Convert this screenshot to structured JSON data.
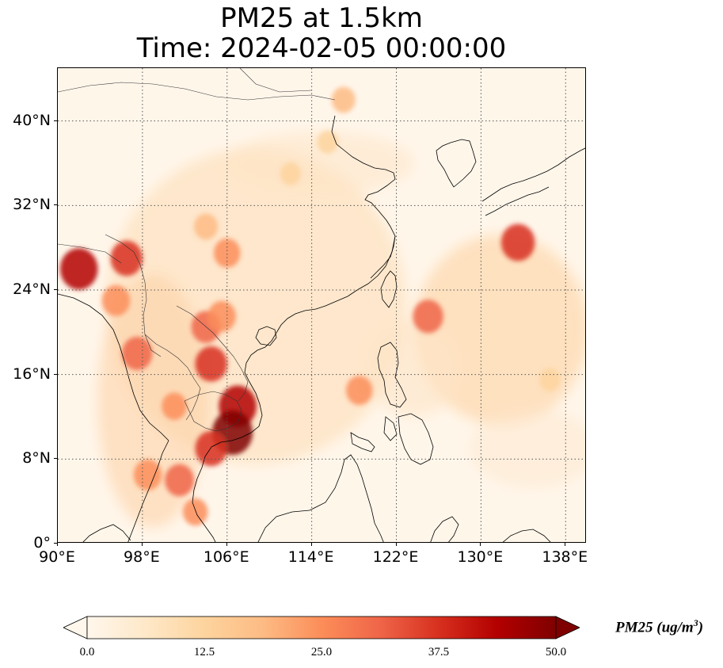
{
  "title": {
    "line1": "PM25 at 1.5km",
    "line2": "Time: 2024-02-05 00:00:00"
  },
  "map": {
    "extent": {
      "lon_min": 90,
      "lon_max": 140,
      "lat_min": 0,
      "lat_max": 45
    },
    "gridlines": "dotted",
    "lon_ticks": [
      {
        "value": 90,
        "label": "90°E"
      },
      {
        "value": 98,
        "label": "98°E"
      },
      {
        "value": 106,
        "label": "106°E"
      },
      {
        "value": 114,
        "label": "114°E"
      },
      {
        "value": 122,
        "label": "122°E"
      },
      {
        "value": 130,
        "label": "130°E"
      },
      {
        "value": 138,
        "label": "138°E"
      }
    ],
    "lat_ticks": [
      {
        "value": 40,
        "label": "40°N"
      },
      {
        "value": 32,
        "label": "32°N"
      },
      {
        "value": 24,
        "label": "24°N"
      },
      {
        "value": 16,
        "label": "16°N"
      },
      {
        "value": 8,
        "label": "8°N"
      },
      {
        "value": 0,
        "label": "0°"
      }
    ]
  },
  "colorbar": {
    "colormap": "OrRd",
    "min": 0.0,
    "max": 50.0,
    "extend": "both",
    "ticks": [
      "0.0",
      "12.5",
      "25.0",
      "37.5",
      "50.0"
    ],
    "label_main": "PM25 (ug/m",
    "label_sup": "3",
    "label_close": ")",
    "colors": [
      "#fff7ec",
      "#fee8c8",
      "#fdd49e",
      "#fdbb84",
      "#fc8d59",
      "#ef6548",
      "#d7301f",
      "#b30000",
      "#7f0000"
    ]
  },
  "chart_data": {
    "type": "heatmap",
    "variable": "PM25",
    "units": "ug/m3",
    "level": "1.5km",
    "time": "2024-02-05 00:00:00",
    "hotspots": [
      {
        "lon": 92.0,
        "lat": 26.0,
        "value": 45
      },
      {
        "lon": 96.5,
        "lat": 27.0,
        "value": 35
      },
      {
        "lon": 95.5,
        "lat": 23.0,
        "value": 28
      },
      {
        "lon": 97.5,
        "lat": 18.0,
        "value": 32
      },
      {
        "lon": 104.5,
        "lat": 17.0,
        "value": 35
      },
      {
        "lon": 104.0,
        "lat": 20.5,
        "value": 30
      },
      {
        "lon": 105.5,
        "lat": 21.5,
        "value": 28
      },
      {
        "lon": 107.0,
        "lat": 13.0,
        "value": 45
      },
      {
        "lon": 106.5,
        "lat": 10.5,
        "value": 50
      },
      {
        "lon": 104.5,
        "lat": 9.0,
        "value": 35
      },
      {
        "lon": 101.5,
        "lat": 6.0,
        "value": 30
      },
      {
        "lon": 98.5,
        "lat": 6.5,
        "value": 28
      },
      {
        "lon": 103.0,
        "lat": 3.0,
        "value": 22
      },
      {
        "lon": 106.0,
        "lat": 27.5,
        "value": 25
      },
      {
        "lon": 104.0,
        "lat": 30.0,
        "value": 20
      },
      {
        "lon": 101.0,
        "lat": 13.0,
        "value": 22
      },
      {
        "lon": 125.0,
        "lat": 21.5,
        "value": 32
      },
      {
        "lon": 118.5,
        "lat": 14.5,
        "value": 25
      },
      {
        "lon": 133.5,
        "lat": 28.5,
        "value": 38
      },
      {
        "lon": 117.0,
        "lat": 42.0,
        "value": 20
      },
      {
        "lon": 115.5,
        "lat": 38.0,
        "value": 15
      },
      {
        "lon": 112.0,
        "lat": 35.0,
        "value": 15
      },
      {
        "lon": 136.5,
        "lat": 15.5,
        "value": 15
      }
    ]
  }
}
